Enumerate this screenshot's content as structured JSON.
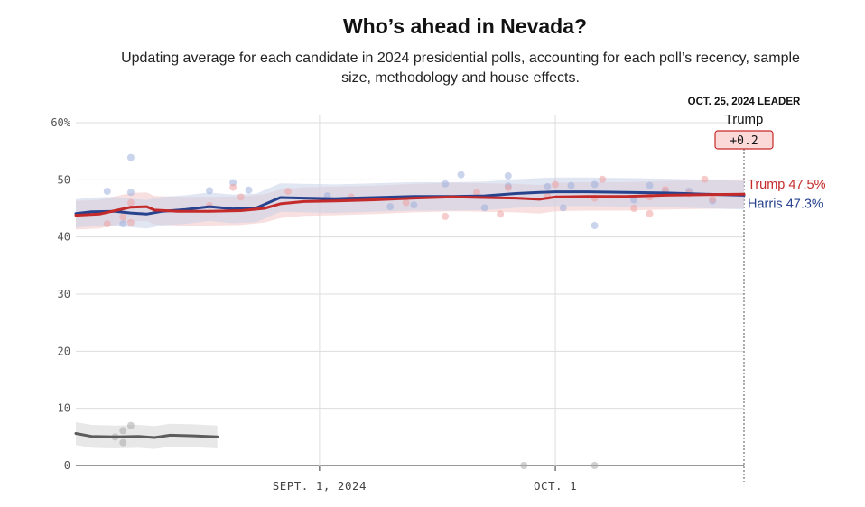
{
  "title": "Who’s ahead in Nevada?",
  "subtitle": "Updating average for each candidate in 2024 presidential polls, accounting for each poll’s recency, sample size, methodology and house effects.",
  "leader": {
    "heading": "OCT. 25, 2024 LEADER",
    "name": "Trump",
    "margin": "+0.2"
  },
  "colors": {
    "trump": "#c42a2a",
    "harris": "#27438d",
    "other": "#5c5c5c",
    "trump_band": "#f4c6c6",
    "harris_band": "#c8d2ea",
    "other_band": "#e6e6e6",
    "leader_box_fill": "#fcd9d9",
    "leader_box_stroke": "#c42a2a",
    "grid": "#dddddd"
  },
  "chart_data": {
    "type": "line",
    "title": "Who’s ahead in Nevada?",
    "x_range": [
      "2024-08-01",
      "2024-10-25"
    ],
    "ylim": [
      0,
      60
    ],
    "y_ticks": [
      {
        "value": 0,
        "label": "0"
      },
      {
        "value": 10,
        "label": "10"
      },
      {
        "value": 20,
        "label": "20"
      },
      {
        "value": 30,
        "label": "30"
      },
      {
        "value": 40,
        "label": "40"
      },
      {
        "value": 50,
        "label": "50"
      },
      {
        "value": 60,
        "label": "60%"
      }
    ],
    "x_ticks": [
      {
        "date": "2024-09-01",
        "label": "SEPT. 1, 2024"
      },
      {
        "date": "2024-10-01",
        "label": "OCT. 1"
      }
    ],
    "grid": true,
    "series": [
      {
        "name": "Trump",
        "color": "#c42a2a",
        "end_label": "Trump 47.5%",
        "band_width": 2.5,
        "points": [
          [
            "2024-08-01",
            43.8
          ],
          [
            "2024-08-04",
            44.0
          ],
          [
            "2024-08-06",
            44.6
          ],
          [
            "2024-08-08",
            45.2
          ],
          [
            "2024-08-10",
            45.3
          ],
          [
            "2024-08-11",
            44.7
          ],
          [
            "2024-08-14",
            44.5
          ],
          [
            "2024-08-18",
            44.5
          ],
          [
            "2024-08-22",
            44.6
          ],
          [
            "2024-08-25",
            45.0
          ],
          [
            "2024-08-27",
            45.8
          ],
          [
            "2024-08-30",
            46.2
          ],
          [
            "2024-09-03",
            46.3
          ],
          [
            "2024-09-08",
            46.5
          ],
          [
            "2024-09-13",
            46.8
          ],
          [
            "2024-09-18",
            47.0
          ],
          [
            "2024-09-22",
            46.9
          ],
          [
            "2024-09-26",
            46.8
          ],
          [
            "2024-09-29",
            46.6
          ],
          [
            "2024-10-01",
            47.0
          ],
          [
            "2024-10-05",
            47.1
          ],
          [
            "2024-10-10",
            47.1
          ],
          [
            "2024-10-15",
            47.3
          ],
          [
            "2024-10-20",
            47.4
          ],
          [
            "2024-10-25",
            47.5
          ]
        ]
      },
      {
        "name": "Harris",
        "color": "#27438d",
        "end_label": "Harris 47.3%",
        "band_width": 2.5,
        "points": [
          [
            "2024-08-01",
            44.1
          ],
          [
            "2024-08-03",
            44.4
          ],
          [
            "2024-08-06",
            44.5
          ],
          [
            "2024-08-08",
            44.2
          ],
          [
            "2024-08-10",
            44.0
          ],
          [
            "2024-08-12",
            44.5
          ],
          [
            "2024-08-15",
            44.8
          ],
          [
            "2024-08-18",
            45.3
          ],
          [
            "2024-08-21",
            44.9
          ],
          [
            "2024-08-24",
            45.1
          ],
          [
            "2024-08-27",
            46.9
          ],
          [
            "2024-08-30",
            46.8
          ],
          [
            "2024-09-03",
            46.7
          ],
          [
            "2024-09-08",
            46.9
          ],
          [
            "2024-09-13",
            47.1
          ],
          [
            "2024-09-18",
            47.1
          ],
          [
            "2024-09-22",
            47.2
          ],
          [
            "2024-09-26",
            47.6
          ],
          [
            "2024-09-29",
            47.8
          ],
          [
            "2024-10-01",
            47.9
          ],
          [
            "2024-10-05",
            47.9
          ],
          [
            "2024-10-10",
            47.8
          ],
          [
            "2024-10-15",
            47.7
          ],
          [
            "2024-10-20",
            47.5
          ],
          [
            "2024-10-25",
            47.3
          ]
        ]
      },
      {
        "name": "",
        "color": "#5c5c5c",
        "band_width": 2.0,
        "points": [
          [
            "2024-08-01",
            5.6
          ],
          [
            "2024-08-03",
            5.1
          ],
          [
            "2024-08-06",
            5.0
          ],
          [
            "2024-08-09",
            5.1
          ],
          [
            "2024-08-11",
            4.9
          ],
          [
            "2024-08-13",
            5.3
          ],
          [
            "2024-08-16",
            5.2
          ],
          [
            "2024-08-19",
            5.0
          ]
        ]
      }
    ],
    "polls": {
      "trump": [
        [
          "2024-08-05",
          42.3
        ],
        [
          "2024-08-07",
          43.5
        ],
        [
          "2024-08-08",
          42.5
        ],
        [
          "2024-08-08",
          46.0
        ],
        [
          "2024-08-18",
          45.5
        ],
        [
          "2024-08-21",
          48.7
        ],
        [
          "2024-08-22",
          47.0
        ],
        [
          "2024-08-28",
          48.0
        ],
        [
          "2024-09-05",
          47.0
        ],
        [
          "2024-09-12",
          46.0
        ],
        [
          "2024-09-17",
          43.6
        ],
        [
          "2024-09-21",
          47.8
        ],
        [
          "2024-09-24",
          44.0
        ],
        [
          "2024-09-25",
          48.6
        ],
        [
          "2024-09-30",
          47.1
        ],
        [
          "2024-10-01",
          49.2
        ],
        [
          "2024-10-06",
          46.8
        ],
        [
          "2024-10-07",
          50.1
        ],
        [
          "2024-10-11",
          45.0
        ],
        [
          "2024-10-13",
          44.1
        ],
        [
          "2024-10-13",
          47.0
        ],
        [
          "2024-10-15",
          48.3
        ],
        [
          "2024-10-18",
          47.6
        ],
        [
          "2024-10-20",
          50.1
        ],
        [
          "2024-10-21",
          46.6
        ]
      ],
      "harris": [
        [
          "2024-08-05",
          48.0
        ],
        [
          "2024-08-07",
          42.3
        ],
        [
          "2024-08-08",
          47.8
        ],
        [
          "2024-08-08",
          53.9
        ],
        [
          "2024-08-18",
          48.1
        ],
        [
          "2024-08-21",
          49.5
        ],
        [
          "2024-08-23",
          48.2
        ],
        [
          "2024-09-02",
          47.2
        ],
        [
          "2024-09-10",
          45.3
        ],
        [
          "2024-09-13",
          45.6
        ],
        [
          "2024-09-17",
          49.3
        ],
        [
          "2024-09-19",
          50.9
        ],
        [
          "2024-09-22",
          45.1
        ],
        [
          "2024-09-25",
          50.7
        ],
        [
          "2024-09-25",
          48.9
        ],
        [
          "2024-09-30",
          48.8
        ],
        [
          "2024-10-02",
          45.1
        ],
        [
          "2024-10-03",
          49.0
        ],
        [
          "2024-10-06",
          49.2
        ],
        [
          "2024-10-06",
          42.0
        ],
        [
          "2024-10-11",
          46.5
        ],
        [
          "2024-10-13",
          49.0
        ],
        [
          "2024-10-15",
          48.0
        ],
        [
          "2024-10-18",
          48.0
        ],
        [
          "2024-10-21",
          46.3
        ]
      ],
      "other": [
        [
          "2024-08-06",
          5.0
        ],
        [
          "2024-08-07",
          4.0
        ],
        [
          "2024-08-07",
          6.1
        ],
        [
          "2024-08-08",
          7.0
        ],
        [
          "2024-09-27",
          0.0
        ],
        [
          "2024-10-06",
          0.0
        ]
      ]
    }
  }
}
